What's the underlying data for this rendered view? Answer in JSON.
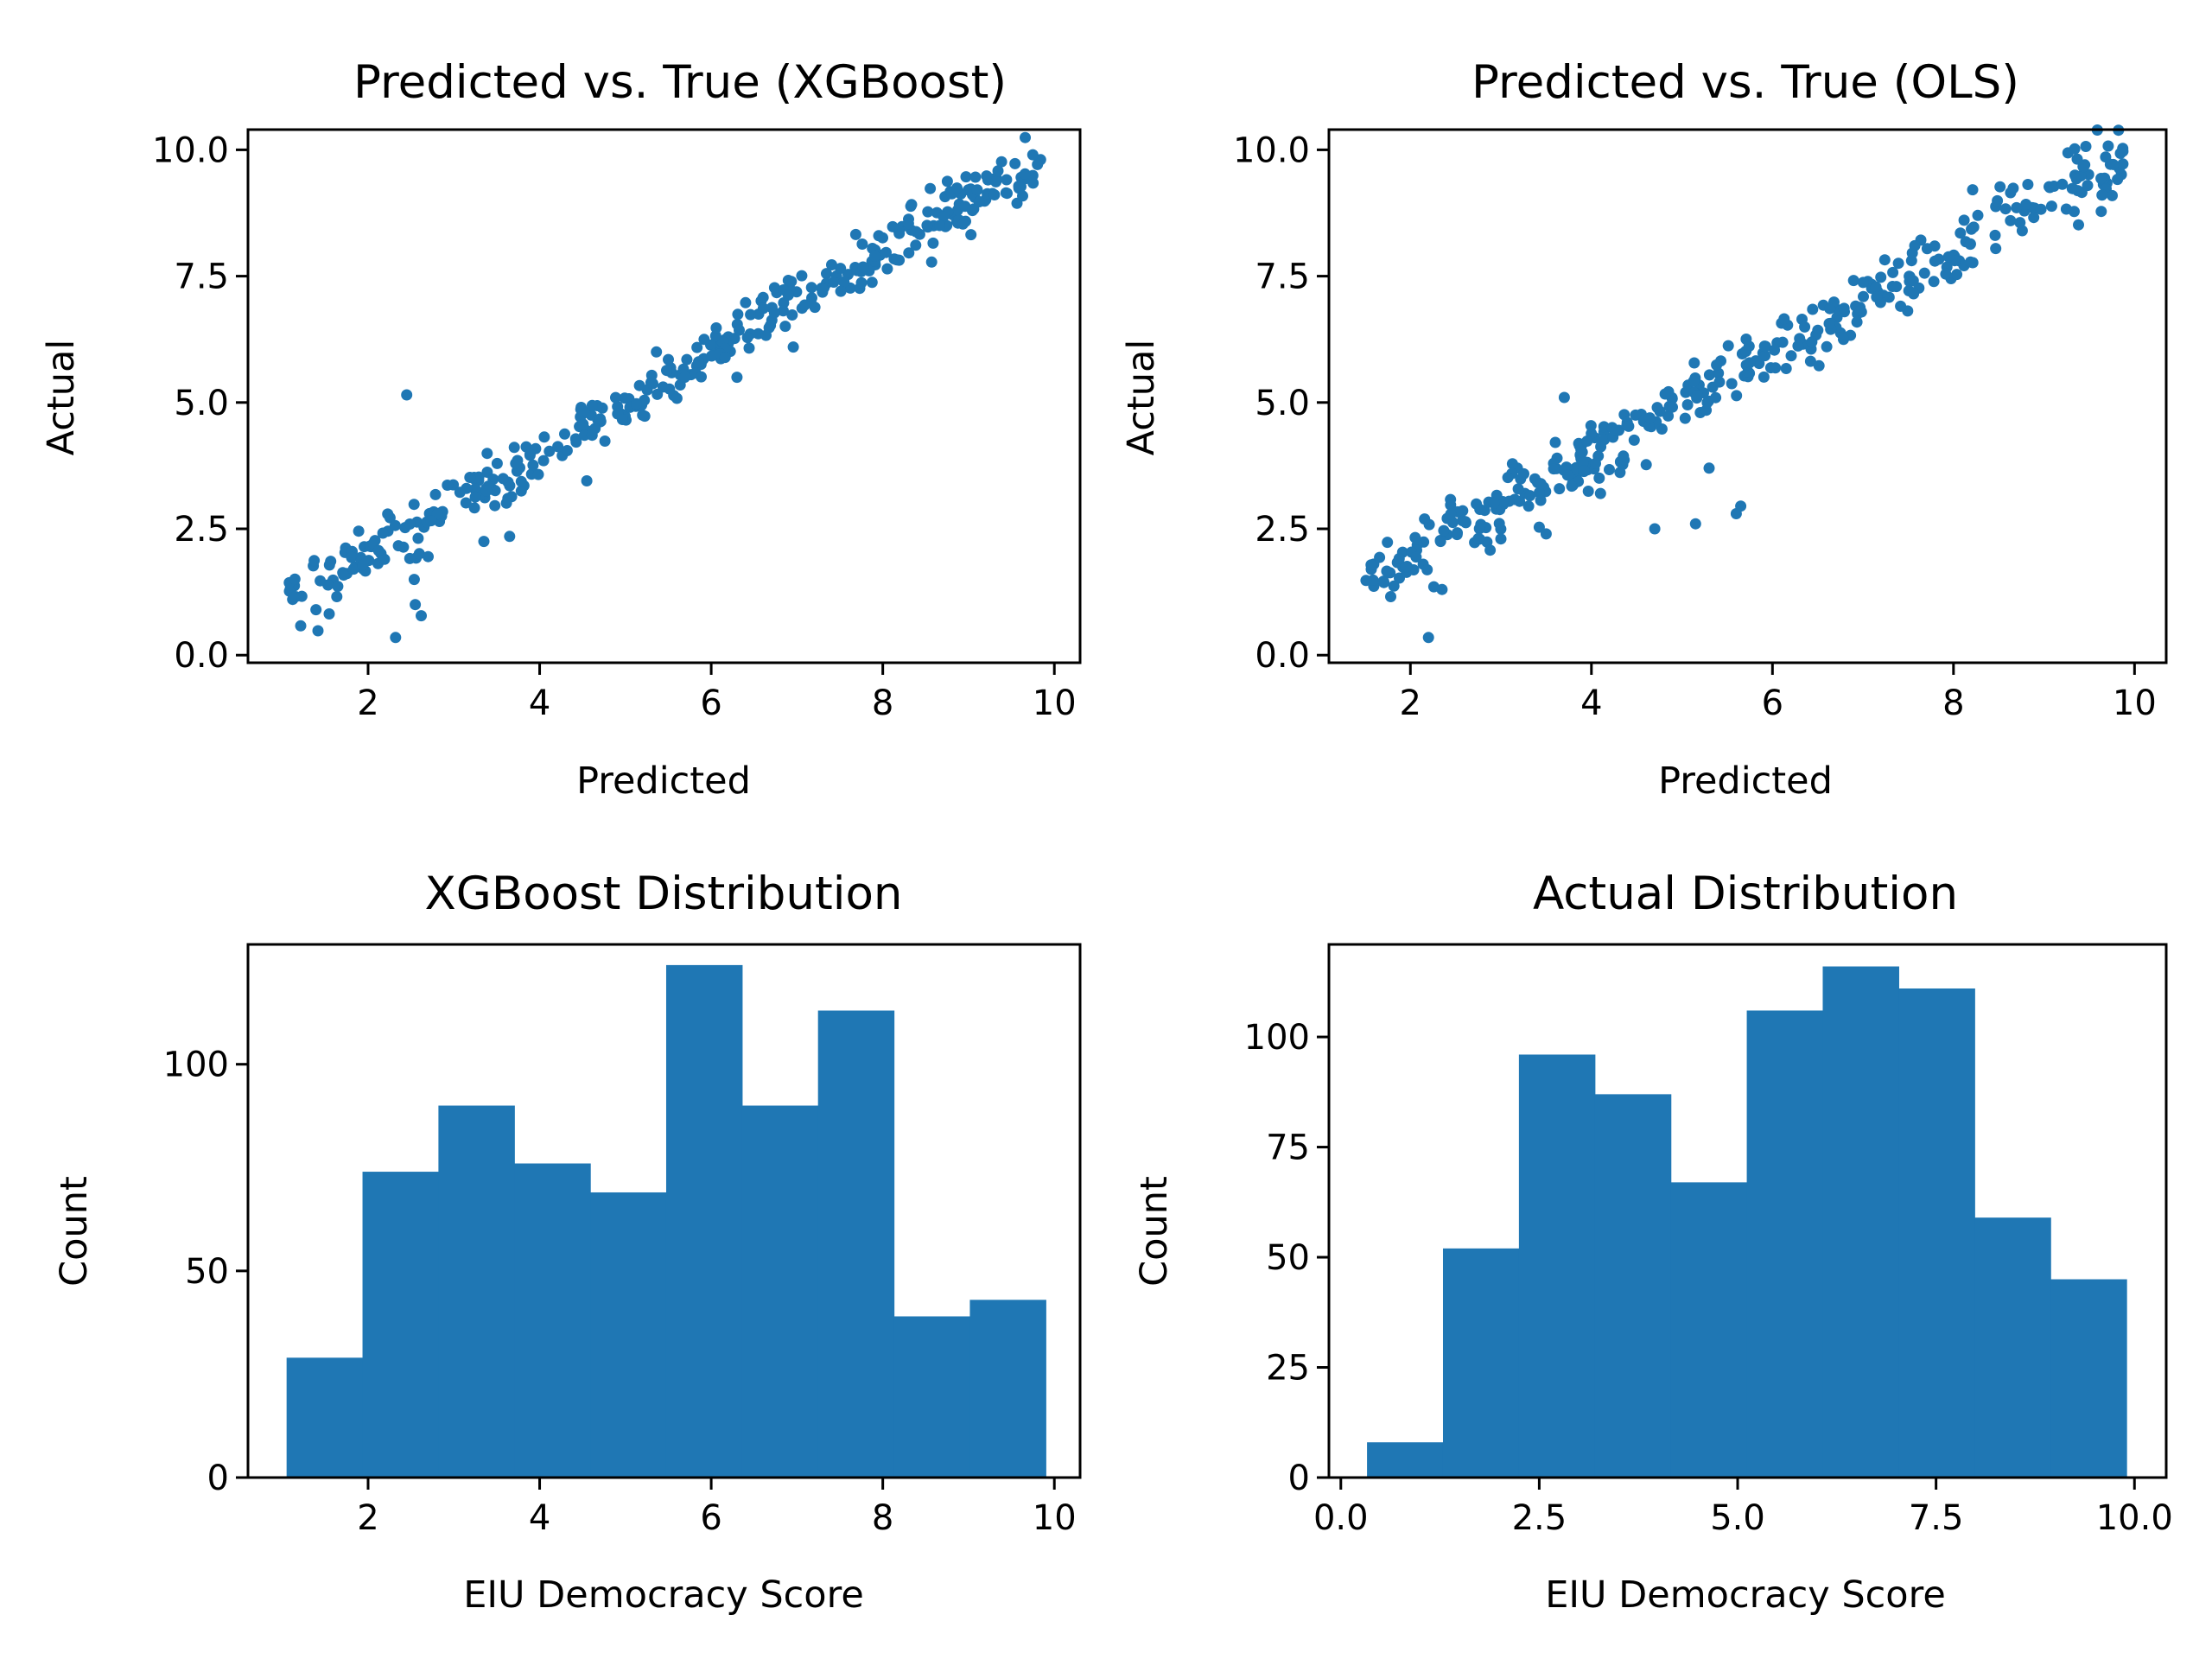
{
  "chart_data": [
    {
      "type": "scatter",
      "title": "Predicted vs. True (XGBoost)",
      "xlabel": "Predicted",
      "ylabel": "Actual",
      "xlim": [
        0.6,
        10.3
      ],
      "ylim": [
        -0.15,
        10.4
      ],
      "xticks": [
        "2",
        "4",
        "6",
        "8",
        "10"
      ],
      "yticks": [
        "0.0",
        "2.5",
        "5.0",
        "7.5",
        "10.0"
      ],
      "color": "#1f77b4",
      "anchors": [
        [
          1.05,
          1.05
        ],
        [
          1.5,
          1.45
        ],
        [
          2.0,
          2.05
        ],
        [
          2.5,
          2.5
        ],
        [
          3.0,
          3.0
        ],
        [
          3.5,
          3.4
        ],
        [
          4.0,
          3.85
        ],
        [
          4.5,
          4.5
        ],
        [
          5.0,
          5.0
        ],
        [
          5.5,
          5.4
        ],
        [
          6.0,
          6.0
        ],
        [
          6.5,
          6.5
        ],
        [
          7.0,
          7.0
        ],
        [
          7.5,
          7.4
        ],
        [
          8.0,
          7.95
        ],
        [
          8.5,
          8.5
        ],
        [
          9.0,
          9.0
        ],
        [
          9.5,
          9.5
        ],
        [
          9.9,
          9.9
        ]
      ],
      "noise": 0.28,
      "num_points": 380,
      "x": [
        2.45,
        2.32,
        2.55,
        2.62,
        3.35,
        3.65,
        2.7,
        4.55,
        5.2,
        6.3,
        5.5
      ],
      "y": [
        5.15,
        0.35,
        1.0,
        0.78,
        2.25,
        2.35,
        1.95,
        3.45,
        4.75,
        5.5,
        5.85
      ]
    },
    {
      "type": "scatter",
      "title": "Predicted vs. True (OLS)",
      "xlabel": "Predicted",
      "ylabel": "Actual",
      "xlim": [
        1.1,
        10.35
      ],
      "ylim": [
        -0.15,
        10.4
      ],
      "xticks": [
        "2",
        "4",
        "6",
        "8",
        "10"
      ],
      "yticks": [
        "0.0",
        "2.5",
        "5.0",
        "7.5",
        "10.0"
      ],
      "color": "#1f77b4",
      "anchors": [
        [
          1.5,
          1.45
        ],
        [
          2.0,
          1.95
        ],
        [
          2.5,
          2.6
        ],
        [
          3.0,
          3.0
        ],
        [
          3.5,
          3.4
        ],
        [
          4.0,
          3.9
        ],
        [
          4.5,
          4.4
        ],
        [
          5.0,
          5.0
        ],
        [
          5.5,
          5.5
        ],
        [
          6.0,
          6.0
        ],
        [
          6.5,
          6.5
        ],
        [
          7.0,
          7.0
        ],
        [
          7.5,
          7.5
        ],
        [
          8.0,
          8.0
        ],
        [
          8.5,
          8.6
        ],
        [
          9.0,
          9.1
        ],
        [
          9.5,
          9.5
        ],
        [
          9.9,
          9.8
        ]
      ],
      "noise": 0.35,
      "num_points": 380,
      "x": [
        2.2,
        3.7,
        4.7,
        5.15,
        5.6,
        5.65,
        3.0,
        4.1,
        2.35,
        3.5,
        5.3
      ],
      "y": [
        0.35,
        5.1,
        2.5,
        2.6,
        2.8,
        2.95,
        2.3,
        3.2,
        1.3,
        2.4,
        3.7
      ]
    },
    {
      "type": "bar",
      "title": "XGBoost Distribution",
      "xlabel": "EIU Democracy Score",
      "ylabel": "Count",
      "xlim": [
        0.6,
        10.3
      ],
      "ylim": [
        0,
        129
      ],
      "xticks": [
        "2",
        "4",
        "6",
        "8",
        "10"
      ],
      "yticks": [
        "0",
        "50",
        "100"
      ],
      "color": "#1f77b4",
      "bin_edges": [
        1.05,
        1.935,
        2.82,
        3.705,
        4.59,
        5.475,
        6.36,
        7.245,
        8.13,
        9.015,
        9.9
      ],
      "values": [
        29,
        74,
        90,
        76,
        69,
        124,
        90,
        113,
        39,
        43
      ]
    },
    {
      "type": "bar",
      "title": "Actual Distribution",
      "xlabel": "EIU Democracy Score",
      "ylabel": "Count",
      "xlim": [
        -0.15,
        10.4
      ],
      "ylim": [
        0,
        121
      ],
      "xticks": [
        "0.0",
        "2.5",
        "5.0",
        "7.5",
        "10.0"
      ],
      "yticks": [
        "0",
        "25",
        "50",
        "75",
        "100"
      ],
      "color": "#1f77b4",
      "bin_edges": [
        0.33,
        1.287,
        2.244,
        3.201,
        4.158,
        5.115,
        6.072,
        7.029,
        7.986,
        8.943,
        9.9
      ],
      "values": [
        8,
        52,
        96,
        87,
        67,
        106,
        116,
        111,
        59,
        45
      ]
    }
  ]
}
